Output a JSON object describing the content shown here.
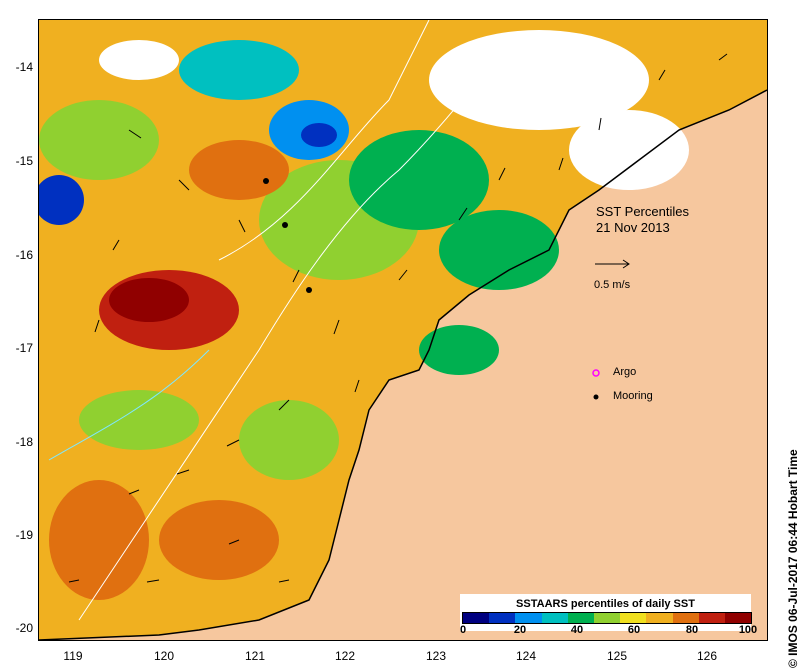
{
  "map": {
    "title": "SST Percentiles",
    "date": "21 Nov 2013",
    "scale_label": "0.5 m/s",
    "longitude_ticks": [
      "119",
      "120",
      "121",
      "122",
      "123",
      "124",
      "125",
      "126"
    ],
    "latitude_ticks": [
      "-14",
      "-15",
      "-16",
      "-17",
      "-18",
      "-19",
      "-20"
    ],
    "legend": {
      "argo_label": "Argo",
      "mooring_label": "Mooring",
      "argo_color": "#ff00ff",
      "mooring_color": "#000000"
    },
    "colorbar": {
      "title": "SSTAARS percentiles of daily SST",
      "tick_labels": [
        "0",
        "20",
        "40",
        "60",
        "80",
        "100"
      ],
      "colors": [
        "#000080",
        "#0030c0",
        "#0090f0",
        "#00c0c0",
        "#00b050",
        "#90d030",
        "#f0e020",
        "#f0b020",
        "#e07010",
        "#c02010",
        "#900000"
      ]
    },
    "land_color": "#f6c79e",
    "credit": "© IMOS 06-Jul-2017 06:44 Hobart Time"
  }
}
